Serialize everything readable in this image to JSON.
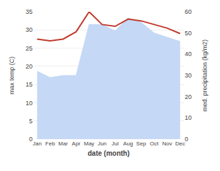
{
  "chart_data": {
    "type": "line",
    "categories": [
      "Jan",
      "Feb",
      "Mar",
      "Apr",
      "May",
      "Jun",
      "Jul",
      "Aug",
      "Sep",
      "Oct",
      "Nov",
      "Dec"
    ],
    "series": [
      {
        "type": "area",
        "axis": "y2",
        "color": "#c5d8f5",
        "values": [
          32,
          29,
          30,
          30,
          54,
          54,
          51,
          57,
          55,
          50,
          48,
          46
        ]
      },
      {
        "type": "line",
        "color": "#c0392b",
        "values": [
          27.5,
          27.0,
          27.5,
          29.5,
          35.0,
          31.5,
          31.0,
          33.0,
          32.5,
          31.5,
          30.5,
          29.0
        ]
      }
    ],
    "xlabel": "date (month)",
    "ylabel": "max temp (C)",
    "y2label": "med. precipitation (kg/m2)",
    "ylim": [
      0,
      35
    ],
    "yticks": [
      0,
      5,
      10,
      15,
      20,
      25,
      30,
      35
    ],
    "y2lim": [
      0,
      60
    ],
    "y2ticks": [
      0,
      10,
      20,
      30,
      40,
      50,
      60
    ],
    "grid": true
  }
}
